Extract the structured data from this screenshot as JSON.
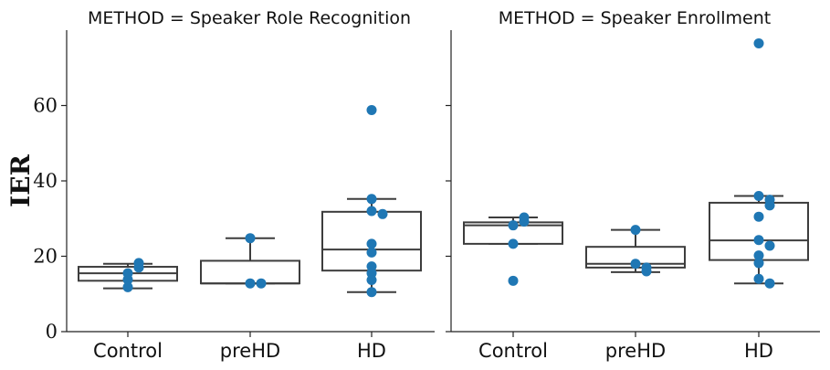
{
  "chart_data": {
    "type": "box",
    "ylabel": "IER",
    "ylim": [
      0,
      80
    ],
    "yticks": [
      "0",
      "20",
      "40",
      "60"
    ],
    "yticks_values": [
      0,
      20,
      40,
      60
    ],
    "panels": [
      {
        "title": "METHOD = Speaker Role Recognition",
        "categories": [
          "Control",
          "preHD",
          "HD"
        ],
        "boxes": [
          {
            "category": "Control",
            "q1": 13.5,
            "median": 15.5,
            "q3": 17.2,
            "whisker_low": 11.5,
            "whisker_high": 18.0,
            "points": [
              11.8,
              13.8,
              15.5,
              17.0,
              18.2
            ]
          },
          {
            "category": "preHD",
            "q1": 12.8,
            "median": 12.8,
            "q3": 18.8,
            "whisker_low": 12.8,
            "whisker_high": 24.8,
            "points": [
              12.8,
              12.8,
              24.8
            ]
          },
          {
            "category": "HD",
            "q1": 16.2,
            "median": 21.8,
            "q3": 31.8,
            "whisker_low": 10.5,
            "whisker_high": 35.2,
            "points": [
              58.8,
              35.2,
              32.0,
              31.2,
              23.3,
              21.0,
              17.3,
              15.5,
              13.7,
              10.5
            ]
          }
        ]
      },
      {
        "title": "METHOD = Speaker Enrollment",
        "categories": [
          "Control",
          "preHD",
          "HD"
        ],
        "boxes": [
          {
            "category": "Control",
            "q1": 23.3,
            "median": 28.2,
            "q3": 29.0,
            "whisker_low": 23.3,
            "whisker_high": 30.3,
            "points": [
              13.5,
              23.3,
              28.2,
              29.2,
              30.3
            ]
          },
          {
            "category": "preHD",
            "q1": 17.0,
            "median": 18.0,
            "q3": 22.5,
            "whisker_low": 15.8,
            "whisker_high": 27.0,
            "points": [
              27.0,
              18.0,
              17.0,
              16.0
            ]
          },
          {
            "category": "HD",
            "q1": 19.0,
            "median": 24.2,
            "q3": 34.2,
            "whisker_low": 12.8,
            "whisker_high": 36.0,
            "points": [
              76.5,
              36.0,
              35.0,
              33.5,
              30.5,
              24.3,
              22.8,
              20.2,
              18.2,
              14.0,
              12.8
            ]
          }
        ]
      }
    ]
  }
}
